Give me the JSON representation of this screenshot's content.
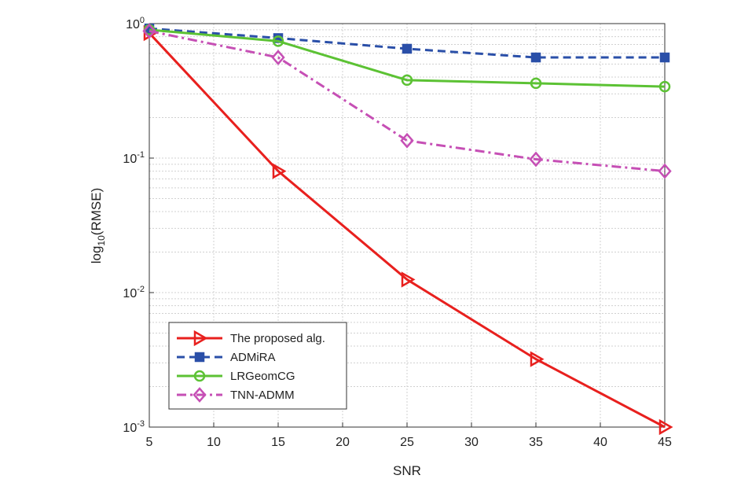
{
  "chart_data": {
    "type": "line",
    "x": [
      5,
      15,
      25,
      35,
      45
    ],
    "xlim": [
      5,
      45
    ],
    "xticks": [
      5,
      10,
      15,
      20,
      25,
      30,
      35,
      40,
      45
    ],
    "ylim": [
      0.001,
      1
    ],
    "yticks": [
      {
        "value": 0.001,
        "base": "10",
        "exp": "-3"
      },
      {
        "value": 0.01,
        "base": "10",
        "exp": "-2"
      },
      {
        "value": 0.1,
        "base": "10",
        "exp": "-1"
      },
      {
        "value": 1,
        "base": "10",
        "exp": "0"
      }
    ],
    "yscale": "log",
    "grid": true,
    "legend": "lower left",
    "xlabel": "SNR",
    "ylabel": {
      "prefix": "log",
      "subscript": "10",
      "suffix": "(RMSE)"
    },
    "series": [
      {
        "name": "The proposed alg.",
        "color": "#e8201e",
        "linestyle": "solid",
        "marker": "triangle-right",
        "values": [
          0.85,
          0.08,
          0.0125,
          0.0032,
          0.001
        ]
      },
      {
        "name": "ADMiRA",
        "color": "#2a4fa8",
        "linestyle": "dashed",
        "marker": "square",
        "values": [
          0.92,
          0.78,
          0.65,
          0.56,
          0.56
        ]
      },
      {
        "name": "LRGeomCG",
        "color": "#5cc234",
        "linestyle": "solid",
        "marker": "circle",
        "values": [
          0.9,
          0.74,
          0.38,
          0.36,
          0.34
        ]
      },
      {
        "name": "TNN-ADMM",
        "color": "#c64fb5",
        "linestyle": "dashdot",
        "marker": "diamond",
        "values": [
          0.88,
          0.56,
          0.135,
          0.098,
          0.08
        ]
      }
    ]
  }
}
